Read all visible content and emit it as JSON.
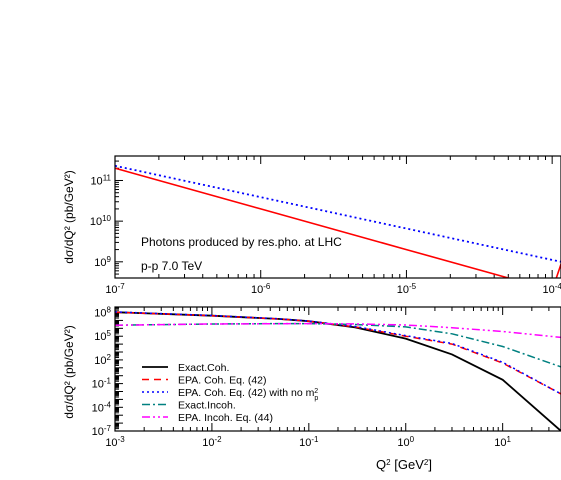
{
  "chart_data": [
    {
      "type": "line",
      "xscale": "log",
      "yscale": "log",
      "xlim": [
        1e-07,
        0.000115
      ],
      "ylim": [
        400000000.0,
        400000000000.0
      ],
      "ylabel": "dσ/dQ² (pb/GeV²)",
      "xlabel": "",
      "x_ticks": [
        {
          "value": 1e-07,
          "label_base": "10",
          "label_exp": "-7"
        },
        {
          "value": 1e-06,
          "label_base": "10",
          "label_exp": "-6"
        },
        {
          "value": 1e-05,
          "label_base": "10",
          "label_exp": "-5"
        },
        {
          "value": 0.0001,
          "label_base": "10",
          "label_exp": "-4"
        }
      ],
      "y_ticks": [
        {
          "value": 1000000000.0,
          "label_base": "10",
          "label_exp": "9"
        },
        {
          "value": 10000000000.0,
          "label_base": "10",
          "label_exp": "10"
        },
        {
          "value": 100000000000.0,
          "label_base": "10",
          "label_exp": "11"
        }
      ],
      "annotations": [
        "Photons produced by res.pho. at LHC",
        "p-p 7.0 TeV"
      ],
      "series": [
        {
          "color": "#ff0000",
          "dash": "",
          "width": 1.6,
          "x": [
            1e-07,
            1e-06,
            1e-05,
            0.0001,
            0.000115
          ],
          "y": [
            200000000000.0,
            20000000000.0,
            2000000000.0,
            200000000.0,
            880000000.0
          ]
        },
        {
          "color": "#0000ff",
          "dash": "2,3",
          "width": 1.8,
          "x": [
            1e-07,
            0.000115
          ],
          "y": [
            230000000000.0,
            1000000000.0
          ]
        }
      ]
    },
    {
      "type": "line",
      "xscale": "log",
      "yscale": "log",
      "xlim": [
        0.001,
        40
      ],
      "ylim": [
        1e-07,
        500000000.0
      ],
      "xlabel": "Q² [GeV²]",
      "ylabel": "dσ/dQ² (pb/GeV²)",
      "x_ticks": [
        {
          "value": 0.001,
          "label_base": "10",
          "label_exp": "-3"
        },
        {
          "value": 0.01,
          "label_base": "10",
          "label_exp": "-2"
        },
        {
          "value": 0.1,
          "label_base": "10",
          "label_exp": "-1"
        },
        {
          "value": 1,
          "label_base": "10",
          "label_exp": "0"
        },
        {
          "value": 10,
          "label_base": "10",
          "label_exp": "1"
        }
      ],
      "y_ticks": [
        {
          "value": 1e-07,
          "label_base": "10",
          "label_exp": "-7"
        },
        {
          "value": 0.0001,
          "label_base": "10",
          "label_exp": "-4"
        },
        {
          "value": 0.1,
          "label_base": "10",
          "label_exp": "-1"
        },
        {
          "value": 100.0,
          "label_base": "10",
          "label_exp": "2"
        },
        {
          "value": 100000.0,
          "label_base": "10",
          "label_exp": "5"
        },
        {
          "value": 100000000.0,
          "label_base": "10",
          "label_exp": "8"
        }
      ],
      "legend_position": "bottom-left",
      "series": [
        {
          "name": "Exact.Coh.",
          "color": "#000000",
          "dash": "",
          "width": 1.8,
          "x": [
            0.001,
            0.01,
            0.05,
            0.1,
            0.3,
            1,
            3,
            10,
            40
          ],
          "y": [
            110000000.0,
            40000000.0,
            15000000.0,
            8000000.0,
            1300000.0,
            50000.0,
            500.0,
            0.3,
            1e-07
          ]
        },
        {
          "name": "EPA. Coh. Eq. (42)",
          "color": "#ff0000",
          "dash": "7,5",
          "width": 1.5,
          "x": [
            0.001,
            0.01,
            0.05,
            0.1,
            0.3,
            1,
            3,
            10,
            40
          ],
          "y": [
            110000000.0,
            40000000.0,
            15000000.0,
            8000000.0,
            1500000.0,
            100000.0,
            10000.0,
            40.0,
            0.005
          ]
        },
        {
          "name": "EPA. Coh. Eq. (42) with no m_p²",
          "color": "#0000ff",
          "dash": "2,3",
          "width": 1.5,
          "x": [
            0.001,
            0.01,
            0.05,
            0.1,
            0.3,
            1,
            3,
            10,
            40
          ],
          "y": [
            120000000.0,
            42000000.0,
            16000000.0,
            8500000.0,
            1700000.0,
            120000.0,
            12000.0,
            50.0,
            0.005
          ]
        },
        {
          "name": "Exact.Incoh.",
          "color": "#008080",
          "dash": "8,3,2,3",
          "width": 1.5,
          "x": [
            0.001,
            0.01,
            0.05,
            0.1,
            0.3,
            1,
            3,
            10,
            40
          ],
          "y": [
            2500000.0,
            3500000.0,
            4000000.0,
            4000000.0,
            3000000.0,
            1500000.0,
            200000.0,
            5000.0,
            13.0
          ]
        },
        {
          "name": "EPA. Incoh. Eq. (44)",
          "color": "#ff00ff",
          "dash": "8,3,2,3,2,3",
          "width": 1.5,
          "x": [
            0.001,
            0.01,
            0.1,
            0.3,
            1,
            3,
            10,
            40
          ],
          "y": [
            2500000.0,
            3500000.0,
            4000000.0,
            3600000.0,
            2600000.0,
            1200000.0,
            400000.0,
            70000.0
          ]
        }
      ]
    }
  ]
}
